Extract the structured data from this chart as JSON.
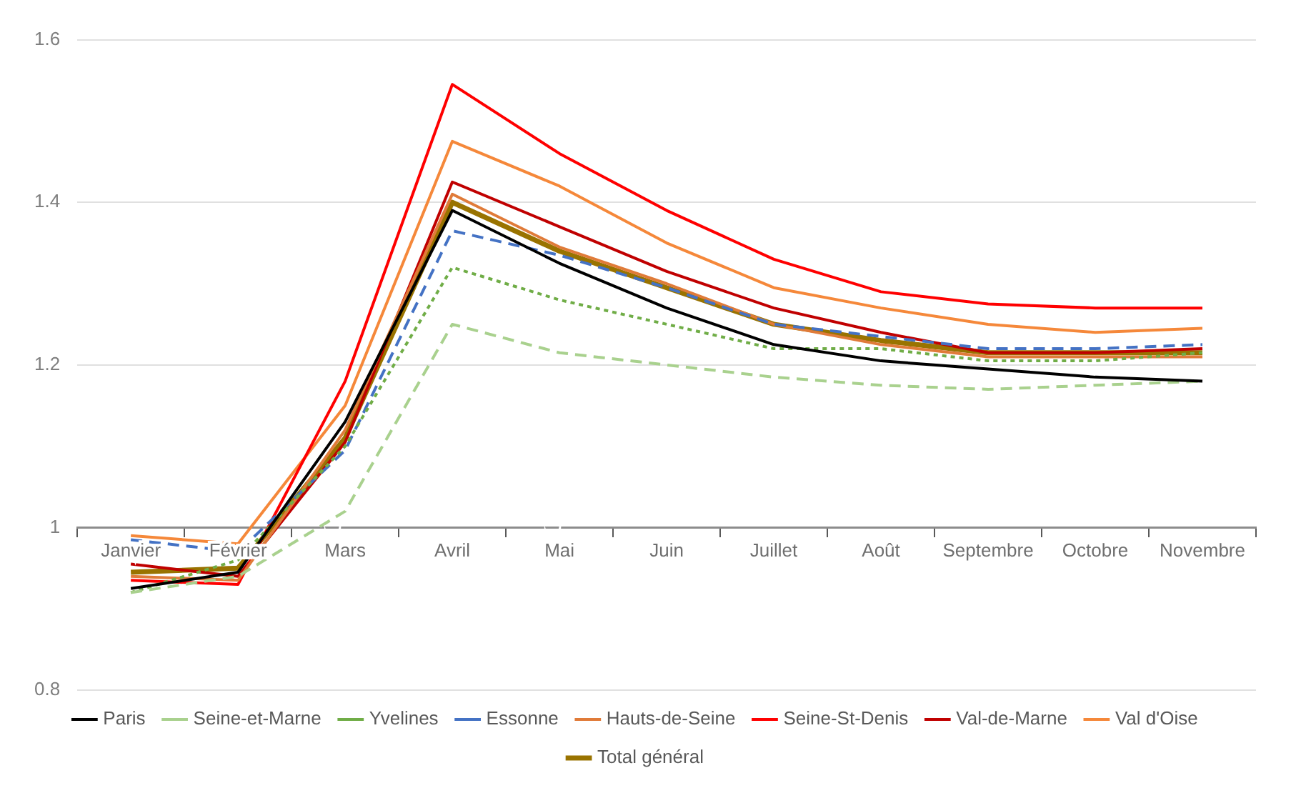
{
  "chart_data": {
    "type": "line",
    "categories": [
      "Janvier",
      "Février",
      "Mars",
      "Avril",
      "Mai",
      "Juin",
      "Juillet",
      "Août",
      "Septembre",
      "Octobre",
      "Novembre"
    ],
    "ylim": [
      0.8,
      1.6
    ],
    "yticks": [
      0.8,
      1,
      1.2,
      1.4,
      1.6
    ],
    "grid": "y",
    "legend": "bottom",
    "marker": "none",
    "series": [
      {
        "name": "Paris",
        "color": "#000000",
        "line_style": "solid",
        "values": [
          0.925,
          0.945,
          1.13,
          1.39,
          1.325,
          1.27,
          1.225,
          1.205,
          1.195,
          1.185,
          1.18
        ]
      },
      {
        "name": "Seine-et-Marne",
        "color": "#a9d18e",
        "line_style": "dashed",
        "values": [
          0.92,
          0.94,
          1.02,
          1.25,
          1.215,
          1.2,
          1.185,
          1.175,
          1.17,
          1.175,
          1.18
        ]
      },
      {
        "name": "Yvelines",
        "color": "#70ad47",
        "line_style": "dotted",
        "values": [
          0.92,
          0.96,
          1.1,
          1.32,
          1.28,
          1.25,
          1.22,
          1.22,
          1.205,
          1.205,
          1.215
        ]
      },
      {
        "name": "Essonne",
        "color": "#4472c4",
        "line_style": "dashed",
        "values": [
          0.985,
          0.97,
          1.095,
          1.365,
          1.335,
          1.295,
          1.25,
          1.235,
          1.22,
          1.22,
          1.225
        ]
      },
      {
        "name": "Hauts-de-Seine",
        "color": "#e07b39",
        "line_style": "solid",
        "values": [
          0.94,
          0.935,
          1.12,
          1.41,
          1.345,
          1.3,
          1.25,
          1.225,
          1.21,
          1.21,
          1.21
        ]
      },
      {
        "name": "Seine-St-Denis",
        "color": "#ff0000",
        "line_style": "solid",
        "values": [
          0.935,
          0.93,
          1.18,
          1.545,
          1.46,
          1.39,
          1.33,
          1.29,
          1.275,
          1.27,
          1.27
        ]
      },
      {
        "name": "Val-de-Marne",
        "color": "#c00000",
        "line_style": "solid",
        "values": [
          0.955,
          0.94,
          1.105,
          1.425,
          1.37,
          1.315,
          1.27,
          1.24,
          1.215,
          1.215,
          1.22
        ]
      },
      {
        "name": "Val d'Oise",
        "color": "#f5883a",
        "line_style": "solid",
        "values": [
          0.99,
          0.98,
          1.15,
          1.475,
          1.42,
          1.35,
          1.295,
          1.27,
          1.25,
          1.24,
          1.245
        ]
      },
      {
        "name": "Total général",
        "color": "#997300",
        "line_style": "solid",
        "values": [
          0.945,
          0.95,
          1.11,
          1.4,
          1.34,
          1.295,
          1.25,
          1.23,
          1.215,
          1.215,
          1.215
        ]
      }
    ]
  }
}
